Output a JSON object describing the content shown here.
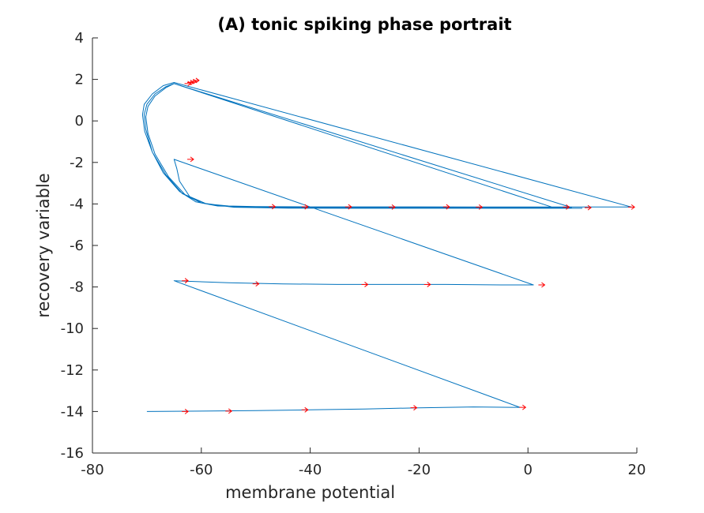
{
  "chart_data": {
    "type": "line",
    "title": "(A) tonic spiking phase portrait",
    "xlabel": "membrane potential",
    "ylabel": "recovery variable",
    "xlim": [
      -80,
      20
    ],
    "ylim": [
      -16,
      4
    ],
    "xticks": [
      "-80",
      "-60",
      "-40",
      "-20",
      "0",
      "20"
    ],
    "yticks": [
      "4",
      "2",
      "0",
      "-2",
      "-4",
      "-6",
      "-8",
      "-10",
      "-12",
      "-14",
      "-16"
    ],
    "grid": false,
    "legend": "none",
    "colors": {
      "trajectory": "#0072BD",
      "arrows": "#FF0000",
      "axes": "#262626"
    },
    "series": [
      {
        "points": [
          [
            -70,
            -14
          ],
          [
            -60,
            -13.98
          ],
          [
            -50,
            -13.96
          ],
          [
            -40,
            -13.92
          ],
          [
            -30,
            -13.88
          ],
          [
            -20,
            -13.82
          ],
          [
            -10,
            -13.78
          ],
          [
            -3,
            -13.8
          ],
          [
            -1.5,
            -13.8
          ],
          [
            -65,
            -7.7
          ],
          [
            -55,
            -7.8
          ],
          [
            -45,
            -7.85
          ],
          [
            -35,
            -7.88
          ],
          [
            -25,
            -7.88
          ],
          [
            -15,
            -7.88
          ],
          [
            -5,
            -7.9
          ],
          [
            1,
            -7.9
          ],
          [
            -65,
            -1.85
          ],
          [
            -64.5,
            -2.3
          ],
          [
            -64,
            -2.9
          ],
          [
            -62,
            -3.7
          ],
          [
            -59,
            -4.0
          ],
          [
            -55,
            -4.1
          ],
          [
            -50,
            -4.13
          ],
          [
            -40,
            -4.14
          ],
          [
            -30,
            -4.14
          ],
          [
            -20,
            -4.14
          ],
          [
            -10,
            -4.15
          ],
          [
            0,
            -4.15
          ],
          [
            10,
            -4.15
          ],
          [
            17,
            -4.15
          ],
          [
            19,
            -4.15
          ],
          [
            -65,
            1.85
          ],
          [
            -67,
            1.7
          ],
          [
            -69,
            1.3
          ],
          [
            -70.5,
            0.8
          ],
          [
            -70.8,
            0.3
          ],
          [
            -70.4,
            -0.5
          ],
          [
            -69,
            -1.5
          ],
          [
            -67,
            -2.5
          ],
          [
            -64,
            -3.4
          ],
          [
            -61,
            -3.9
          ],
          [
            -57,
            -4.1
          ],
          [
            -50,
            -4.15
          ],
          [
            -40,
            -4.15
          ],
          [
            -30,
            -4.16
          ],
          [
            -20,
            -4.17
          ],
          [
            -10,
            -4.17
          ],
          [
            0,
            -4.17
          ],
          [
            6,
            -4.17
          ],
          [
            8,
            -4.17
          ],
          [
            -65,
            1.8
          ],
          [
            -66.5,
            1.65
          ],
          [
            -68.5,
            1.3
          ],
          [
            -70,
            0.8
          ],
          [
            -70.5,
            0.3
          ],
          [
            -70.2,
            -0.4
          ],
          [
            -69,
            -1.5
          ],
          [
            -66.5,
            -2.6
          ],
          [
            -63.5,
            -3.5
          ],
          [
            -60,
            -3.95
          ],
          [
            -55,
            -4.12
          ],
          [
            -45,
            -4.18
          ],
          [
            -35,
            -4.19
          ],
          [
            -25,
            -4.2
          ],
          [
            -15,
            -4.2
          ],
          [
            -5,
            -4.2
          ],
          [
            3,
            -4.2
          ],
          [
            5,
            -4.2
          ],
          [
            -65,
            1.8
          ],
          [
            -66.5,
            1.6
          ],
          [
            -68.5,
            1.2
          ],
          [
            -69.8,
            0.7
          ],
          [
            -70.2,
            0.2
          ],
          [
            -69.8,
            -0.6
          ],
          [
            -68.5,
            -1.6
          ],
          [
            -66,
            -2.7
          ],
          [
            -63,
            -3.55
          ],
          [
            -59,
            -4.0
          ],
          [
            -54,
            -4.16
          ],
          [
            -44,
            -4.2
          ],
          [
            -34,
            -4.21
          ],
          [
            -24,
            -4.21
          ],
          [
            -14,
            -4.21
          ],
          [
            -4,
            -4.21
          ],
          [
            4,
            -4.21
          ],
          [
            9,
            -4.21
          ],
          [
            10,
            -4.21
          ]
        ]
      }
    ],
    "arrow_marks": [
      [
        -63,
        -7.7
      ],
      [
        -50,
        -7.85
      ],
      [
        -30,
        -7.88
      ],
      [
        -18.5,
        -7.88
      ],
      [
        2.5,
        -7.9
      ],
      [
        -63,
        -14
      ],
      [
        -55,
        -13.98
      ],
      [
        -41,
        -13.92
      ],
      [
        -21,
        -13.82
      ],
      [
        -1,
        -13.8
      ],
      [
        -62,
        -1.85
      ],
      [
        -62,
        1.85
      ],
      [
        -61.5,
        1.9
      ],
      [
        -61,
        1.95
      ],
      [
        -62.5,
        1.8
      ],
      [
        -47,
        -4.13
      ],
      [
        -33,
        -4.14
      ],
      [
        -15,
        -4.14
      ],
      [
        -9,
        -4.15
      ],
      [
        7,
        -4.15
      ],
      [
        11,
        -4.18
      ],
      [
        19,
        -4.15
      ],
      [
        -41,
        -4.14
      ],
      [
        -25,
        -4.15
      ]
    ]
  }
}
